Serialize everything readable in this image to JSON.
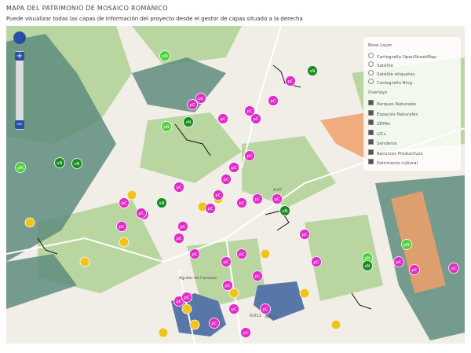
{
  "header": {
    "title": "MAPA DEL PATRIMONIO DE MOSAICO ROMÁNICO",
    "subtitle": "Puede visualizar todas las capas de información del proyecto desde el gestor de capas situado a la derecha"
  },
  "zoom": {
    "in": "+",
    "out": "−"
  },
  "layers": {
    "base_title": "Base Layer",
    "base": [
      "Cartografía OpenStreetMap",
      "Satélite",
      "Satélite etiquetas",
      "Cartografía Bing"
    ],
    "overlay_title": "Overlays",
    "overlays": [
      "Parques Naturales",
      "Espacios Naturales",
      "ZEPAs",
      "LICs",
      "Senderos",
      "Recursos Productivos",
      "Patrimonio cultural"
    ]
  },
  "places": [
    "Aguilar de Campoo",
    "N-611",
    "A-67",
    "N-627"
  ],
  "markers": [
    "pN",
    "pC",
    "sN",
    "pC",
    "pC",
    "sN",
    "pC",
    "pC",
    "pN",
    "pC",
    "pC",
    "sN",
    "pN",
    "pC",
    "sN",
    "pC",
    "pC",
    "pC",
    "pC",
    "pC",
    "pC",
    "pC",
    "sN",
    "pC",
    "pC",
    "pC",
    "pC",
    "pC",
    "pC",
    "pC",
    "pC",
    "pC",
    "pC",
    "pC",
    "pC",
    "pC",
    "pC",
    "pC",
    "pC",
    "sN",
    "pC",
    "pC",
    "pC",
    "pC",
    "pN",
    "sN",
    "pC",
    "pN",
    "pC",
    "pC"
  ]
}
